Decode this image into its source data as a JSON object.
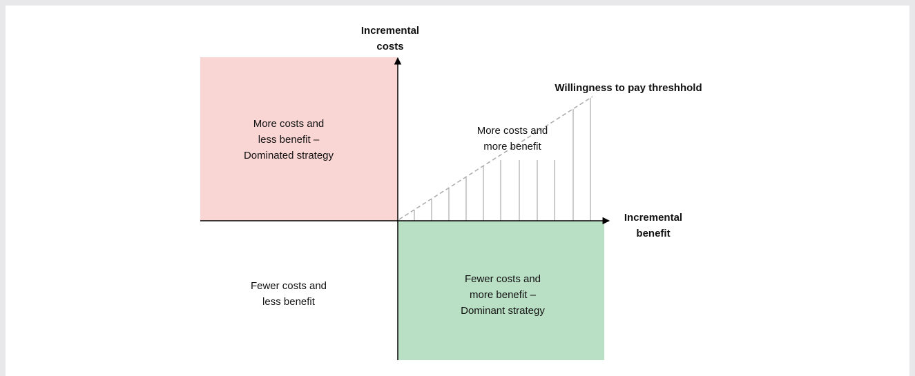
{
  "y_axis_label": [
    "Incremental",
    "costs"
  ],
  "x_axis_label": [
    "Incremental",
    "benefit"
  ],
  "threshold_label": "Willingness to pay threshhold",
  "quadrants": {
    "top_left": [
      "More costs and",
      "less benefit –",
      "Dominated strategy"
    ],
    "top_right": [
      "More costs and",
      "more benefit"
    ],
    "bottom_left": [
      "Fewer costs and",
      "less benefit"
    ],
    "bottom_right": [
      "Fewer costs and",
      "more benefit –",
      "Dominant strategy"
    ]
  }
}
